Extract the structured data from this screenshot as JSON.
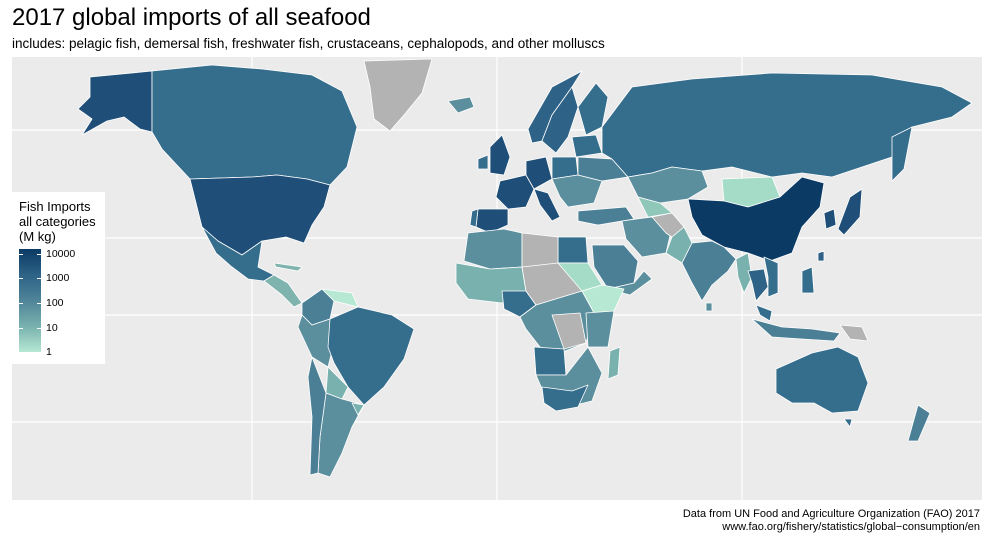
{
  "title": "2017 global imports of all seafood",
  "subtitle": "includes: pelagic fish, demersal fish, freshwater fish, crustaceans, cephalopods, and other molluscs",
  "legend": {
    "title_line1": "Fish Imports",
    "title_line2": "all categories",
    "title_line3": "(M kg)",
    "ticks": [
      "10000",
      "1000",
      "100",
      "10",
      "1"
    ],
    "scale": "log10",
    "color_low": "#b6e8d3",
    "color_high": "#0b3a64"
  },
  "caption": {
    "line1": "Data from UN Food and Agriculture Organization (FAO) 2017",
    "line2": "www.fao.org/fishery/statistics/global−consumption/en"
  },
  "colors": {
    "panel_background": "#ebebeb",
    "gridline": "#ffffff",
    "no_data": "#b3b3b3",
    "border": "#ffffff"
  }
}
